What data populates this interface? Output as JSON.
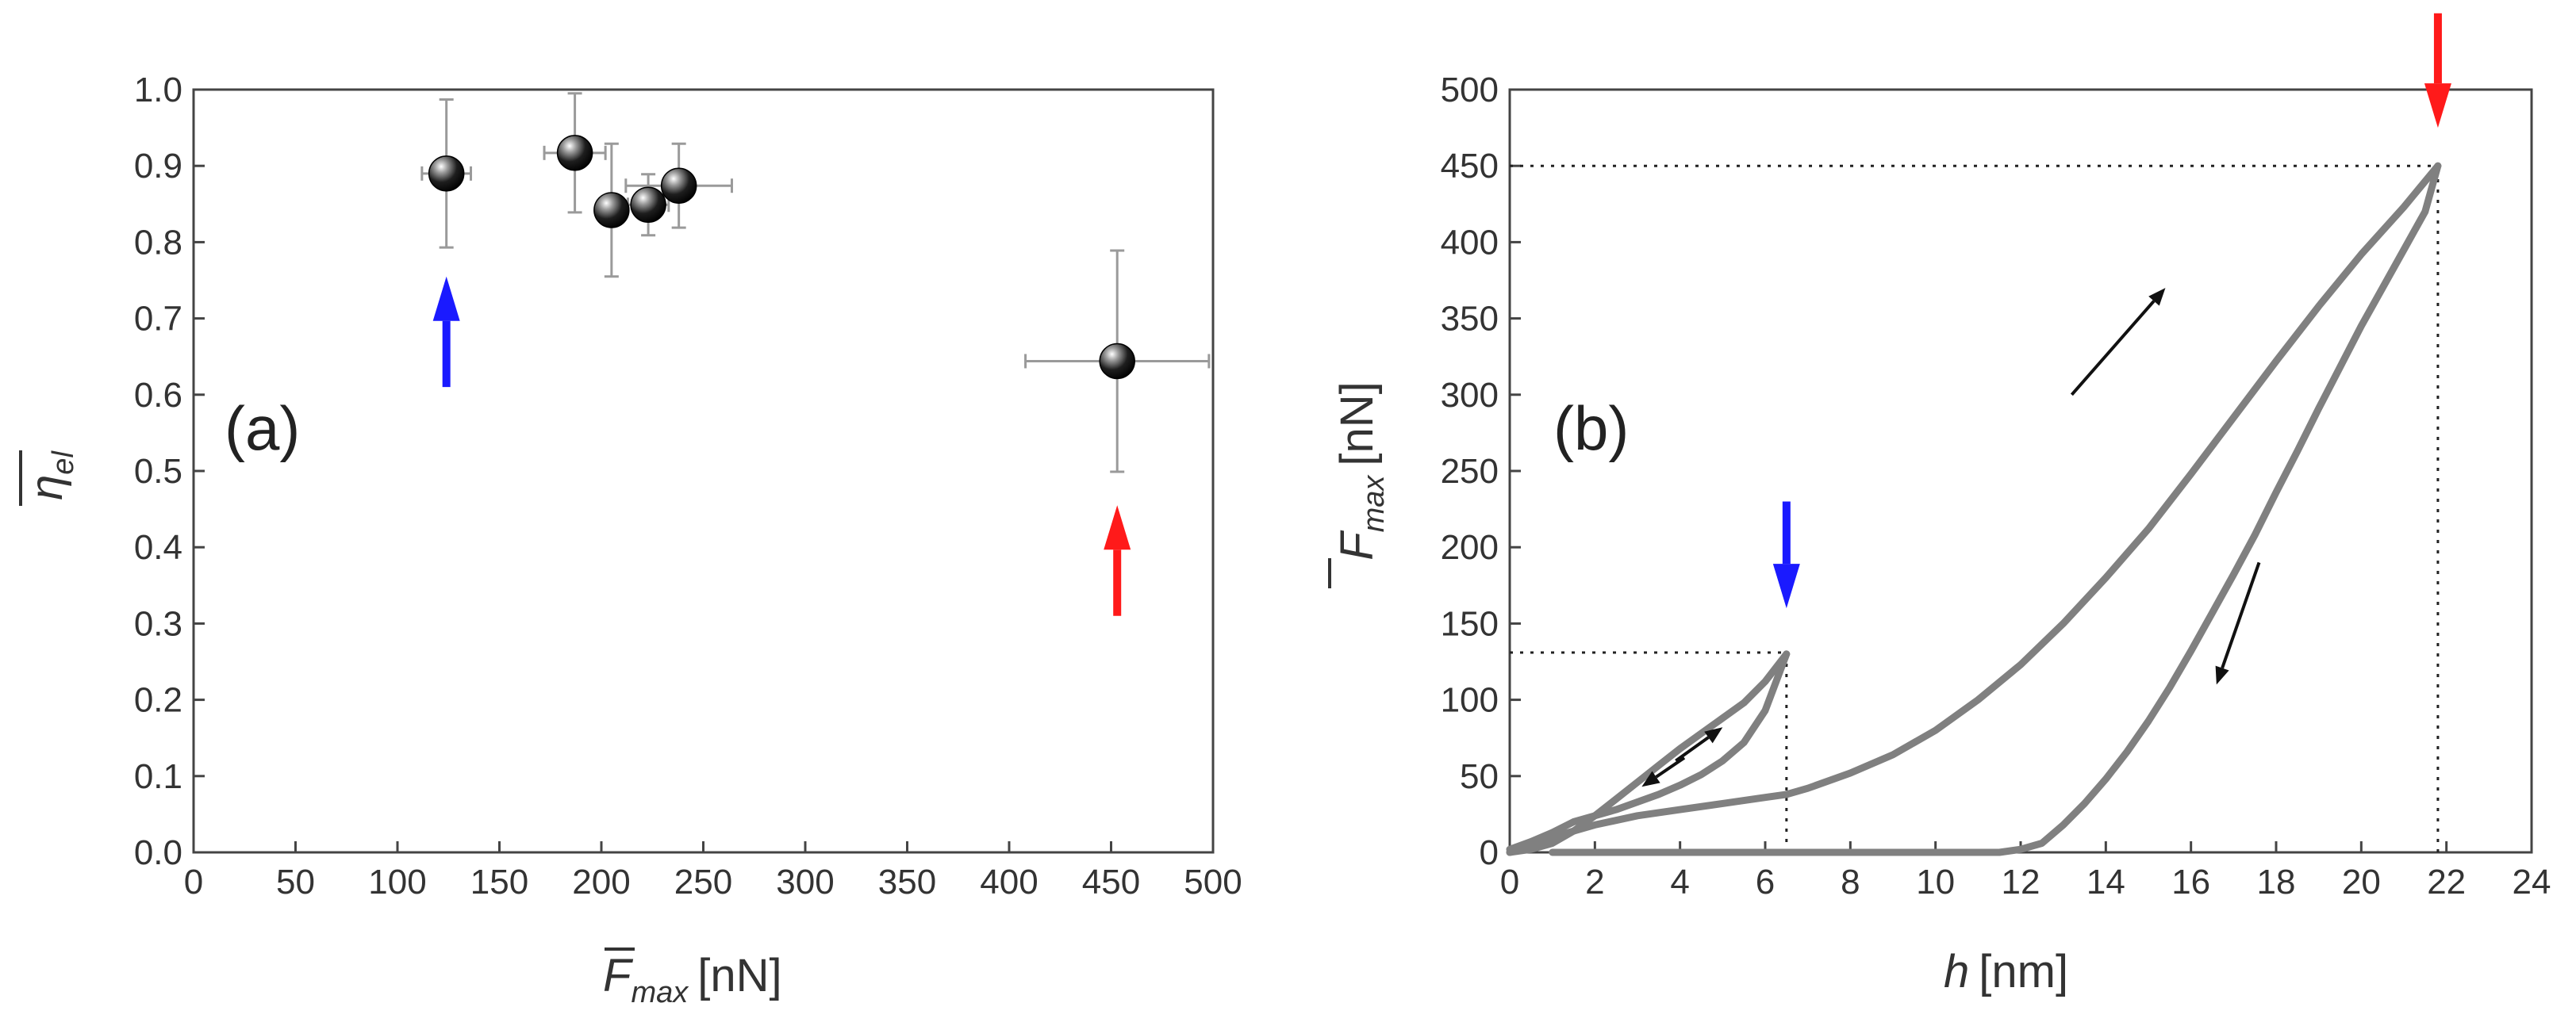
{
  "chart_data": [
    {
      "panel": "(a)",
      "type": "scatter",
      "title": "",
      "panel_label": "(a)",
      "xlabel": {
        "symbol": "F",
        "sub": "max",
        "unit": "[nN]",
        "overbar": true
      },
      "ylabel": {
        "symbol": "η",
        "sub": "el",
        "overbar": true
      },
      "xlim": [
        0,
        500
      ],
      "ylim": [
        0.0,
        1.0
      ],
      "xticks": [
        0,
        50,
        100,
        150,
        200,
        250,
        300,
        350,
        400,
        450,
        500
      ],
      "yticks": [
        0.0,
        0.1,
        0.2,
        0.3,
        0.4,
        0.5,
        0.6,
        0.7,
        0.8,
        0.9,
        1.0
      ],
      "points": [
        {
          "x": 124,
          "y": 0.89,
          "xerr": 12,
          "yerr": 0.097
        },
        {
          "x": 187,
          "y": 0.917,
          "xerr": 15,
          "yerr": 0.078
        },
        {
          "x": 205,
          "y": 0.842,
          "xerr": 7,
          "yerr": 0.087
        },
        {
          "x": 223,
          "y": 0.849,
          "xerr": 10,
          "yerr": 0.04
        },
        {
          "x": 238,
          "y": 0.874,
          "xerr": 26,
          "yerr": 0.055
        },
        {
          "x": 453,
          "y": 0.644,
          "xerr": 45,
          "yerr": 0.145
        }
      ],
      "annotations": [
        {
          "type": "arrow",
          "direction": "up",
          "color": "#1a1aff",
          "x": 124,
          "y_from": 0.61,
          "y_to": 0.755
        },
        {
          "type": "arrow",
          "direction": "up",
          "color": "#ff1a1a",
          "x": 453,
          "y_from": 0.31,
          "y_to": 0.455
        }
      ]
    },
    {
      "panel": "(b)",
      "type": "line",
      "title": "",
      "panel_label": "(b)",
      "xlabel": {
        "symbol": "h",
        "unit": "[nm]"
      },
      "ylabel": {
        "symbol": "F",
        "sub": "max",
        "unit": "[nN]",
        "overbar": true
      },
      "xlim": [
        0,
        24
      ],
      "ylim": [
        0,
        500
      ],
      "xticks": [
        0,
        2,
        4,
        6,
        8,
        10,
        12,
        14,
        16,
        18,
        20,
        22,
        24
      ],
      "yticks": [
        0,
        50,
        100,
        150,
        200,
        250,
        300,
        350,
        400,
        450,
        500
      ],
      "series": [
        {
          "name": "loading-small",
          "color": "#808080",
          "x": [
            0,
            0.5,
            1.0,
            1.5,
            2.0,
            2.5,
            3.0,
            3.5,
            4.0,
            4.5,
            5.0,
            5.5,
            6.0,
            6.5
          ],
          "y": [
            0,
            2,
            6,
            14,
            24,
            35,
            46,
            57,
            68,
            78,
            88,
            98,
            112,
            130
          ]
        },
        {
          "name": "unloading-small",
          "color": "#808080",
          "x": [
            6.5,
            6.0,
            5.5,
            5.0,
            4.5,
            4.0,
            3.5,
            3.0,
            2.5,
            2.0,
            1.5,
            1.0,
            0.5,
            0.0
          ],
          "y": [
            130,
            93,
            72,
            60,
            51,
            44,
            38,
            33,
            28,
            24,
            20,
            13,
            7,
            2
          ]
        },
        {
          "name": "loading-large",
          "color": "#808080",
          "x": [
            0,
            1,
            2,
            3,
            4,
            5,
            6,
            6.5,
            7,
            8,
            9,
            10,
            11,
            12,
            13,
            14,
            15,
            16,
            17,
            18,
            19,
            20,
            21,
            21.8
          ],
          "y": [
            0,
            10,
            18,
            24,
            28,
            32,
            36,
            38,
            42,
            52,
            64,
            80,
            100,
            123,
            150,
            180,
            212,
            248,
            285,
            322,
            358,
            392,
            423,
            450
          ]
        },
        {
          "name": "unloading-large",
          "color": "#808080",
          "x": [
            21.8,
            21.5,
            21.0,
            20.5,
            20.0,
            19.5,
            19.0,
            18.5,
            18.0,
            17.5,
            17.0,
            16.5,
            16.0,
            15.5,
            15.0,
            14.5,
            14.0,
            13.5,
            13.0,
            12.5,
            12.0,
            11.5,
            11.0,
            10.0,
            8.0,
            6.0,
            4.0,
            2.0,
            1.0
          ],
          "y": [
            450,
            420,
            395,
            370,
            345,
            318,
            291,
            263,
            236,
            208,
            182,
            157,
            132,
            108,
            86,
            66,
            48,
            32,
            18,
            6,
            2,
            0,
            0,
            0,
            0,
            0,
            0,
            0,
            0
          ]
        }
      ],
      "guides": [
        {
          "type": "hline",
          "y": 131,
          "x_from": 0,
          "x_to": 6.5
        },
        {
          "type": "vline",
          "x": 6.5,
          "y_from": 0,
          "y_to": 131
        },
        {
          "type": "hline",
          "y": 450,
          "x_from": 0,
          "x_to": 21.8
        },
        {
          "type": "vline",
          "x": 21.8,
          "y_from": 0,
          "y_to": 450
        }
      ],
      "annotations": [
        {
          "type": "arrow",
          "direction": "down",
          "color": "#1a1aff",
          "x": 6.5,
          "y_from": 230,
          "y_to": 160
        },
        {
          "type": "arrow",
          "direction": "down",
          "color": "#ff1a1a",
          "x": 21.8,
          "y_from": 550,
          "y_to": 475
        },
        {
          "type": "arrow",
          "color": "#111111",
          "x_from": 3.9,
          "y_from": 60,
          "x_to": 5.0,
          "y_to": 82
        },
        {
          "type": "arrow",
          "color": "#111111",
          "x_from": 4.1,
          "y_from": 62,
          "x_to": 3.1,
          "y_to": 43
        },
        {
          "type": "arrow",
          "color": "#111111",
          "x_from": 13.2,
          "y_from": 300,
          "x_to": 15.4,
          "y_to": 370
        },
        {
          "type": "arrow",
          "color": "#111111",
          "x_from": 17.6,
          "y_from": 190,
          "x_to": 16.6,
          "y_to": 110
        }
      ]
    }
  ]
}
